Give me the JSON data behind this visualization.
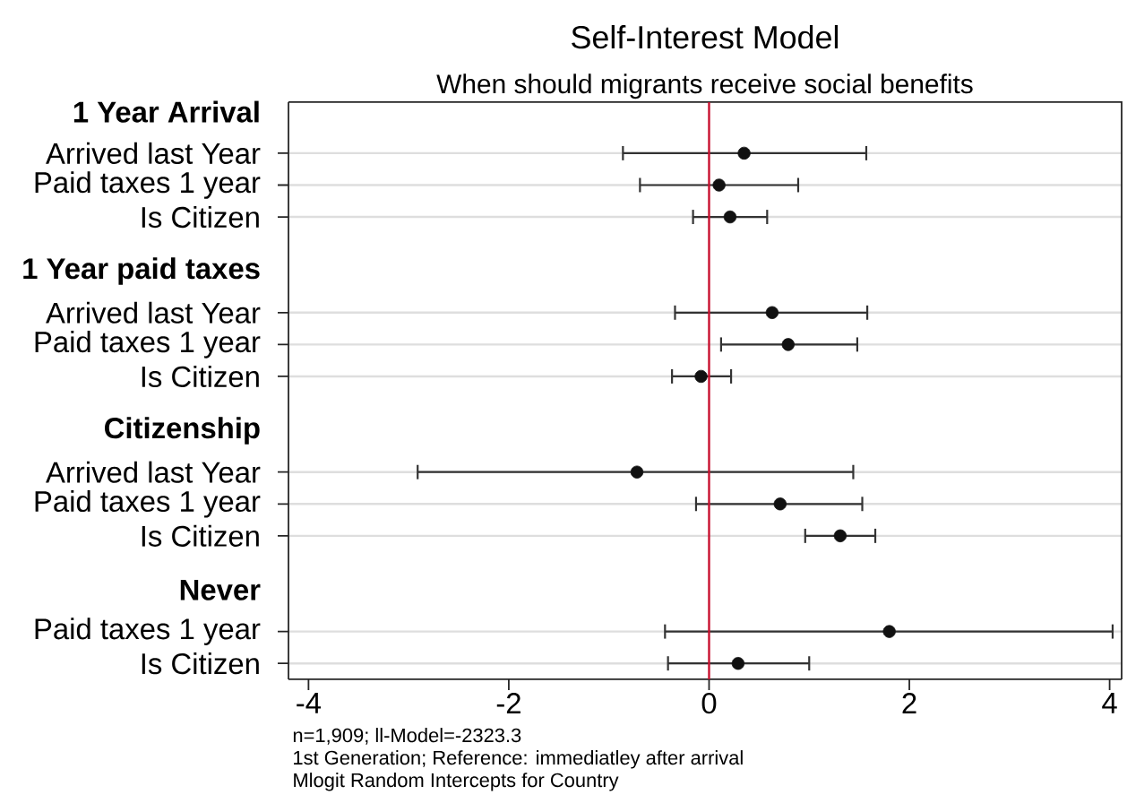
{
  "chart_data": {
    "type": "scatter",
    "orientation": "horizontal",
    "title": "Self-Interest Model",
    "subtitle": "When should migrants receive social benefits",
    "categories": [
      "1 Year Arrival",
      "Arrived last Year",
      "Paid taxes 1 year",
      "Is Citizen",
      null,
      "1 Year paid taxes",
      "Arrived last Year",
      "Paid taxes 1 year",
      "Is Citizen",
      null,
      "Citizenship",
      "Arrived last Year",
      "Paid taxes 1 year",
      "Is Citizen",
      null,
      "Never",
      "Paid taxes 1 year",
      "Is Citizen"
    ],
    "values": [
      null,
      0.35,
      0.1,
      0.21,
      null,
      null,
      0.63,
      0.79,
      -0.08,
      null,
      null,
      -0.72,
      0.71,
      1.31,
      null,
      null,
      1.8,
      0.29
    ],
    "errors": [
      null,
      [
        -0.86,
        1.57
      ],
      [
        -0.69,
        0.89
      ],
      [
        -0.16,
        0.58
      ],
      null,
      null,
      [
        -0.34,
        1.58
      ],
      [
        0.12,
        1.48
      ],
      [
        -0.37,
        0.22
      ],
      null,
      null,
      [
        -2.91,
        1.44
      ],
      [
        -0.13,
        1.53
      ],
      [
        0.96,
        1.66
      ],
      null,
      null,
      [
        -0.44,
        4.03
      ],
      [
        -0.41,
        1.0
      ]
    ],
    "color": "#111111",
    "marker": "circle",
    "grid": "y",
    "xlim": [
      -4.2,
      4.12
    ],
    "xticks": [
      -4,
      -2,
      0,
      2,
      4
    ],
    "ref_lines": [
      {
        "axis": "x",
        "value": 0,
        "color": "#c8102e"
      }
    ],
    "annotations": [
      "n=1,909; ll-Model=-2323.3",
      "1st Generation; Reference: immediatley after arrival",
      "Mlogit Random Intercepts for Country"
    ]
  }
}
